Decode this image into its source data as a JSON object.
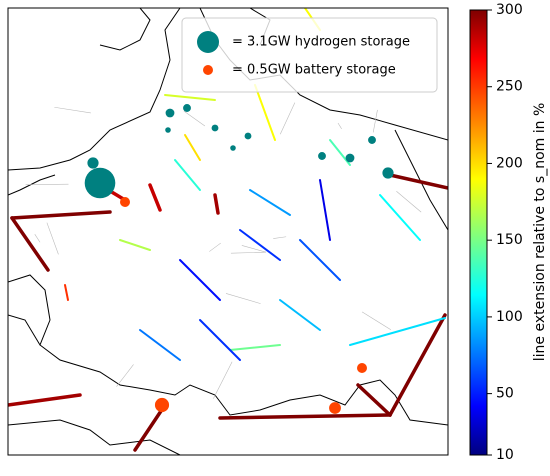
{
  "chart_data": {
    "type": "network-map",
    "legend": [
      {
        "label": "= 3.1GW hydrogen storage",
        "size": 3.1,
        "color": "#008080"
      },
      {
        "label": "= 0.5GW battery storage",
        "size": 0.5,
        "color": "#ff4500"
      }
    ],
    "colorbar": {
      "label": "line extension relative to s_nom in %",
      "lim": [
        10,
        300
      ],
      "ticks": [
        10,
        50,
        100,
        150,
        200,
        250,
        300
      ]
    },
    "line_extension": [
      300,
      300,
      300,
      300,
      300,
      300,
      290,
      300,
      280,
      180,
      190,
      190,
      200,
      290,
      280,
      250,
      110,
      150,
      60,
      70,
      40,
      50,
      80,
      120,
      100,
      130,
      90,
      60,
      170,
      140
    ],
    "hydrogen_storage": [
      6.0,
      0.5,
      0.4,
      0.4,
      0.5,
      0.4,
      0.8,
      0.8,
      0.2,
      0.3,
      0.3,
      0.2
    ],
    "battery_storage": [
      1.0,
      0.7,
      0.5,
      0.5
    ]
  }
}
